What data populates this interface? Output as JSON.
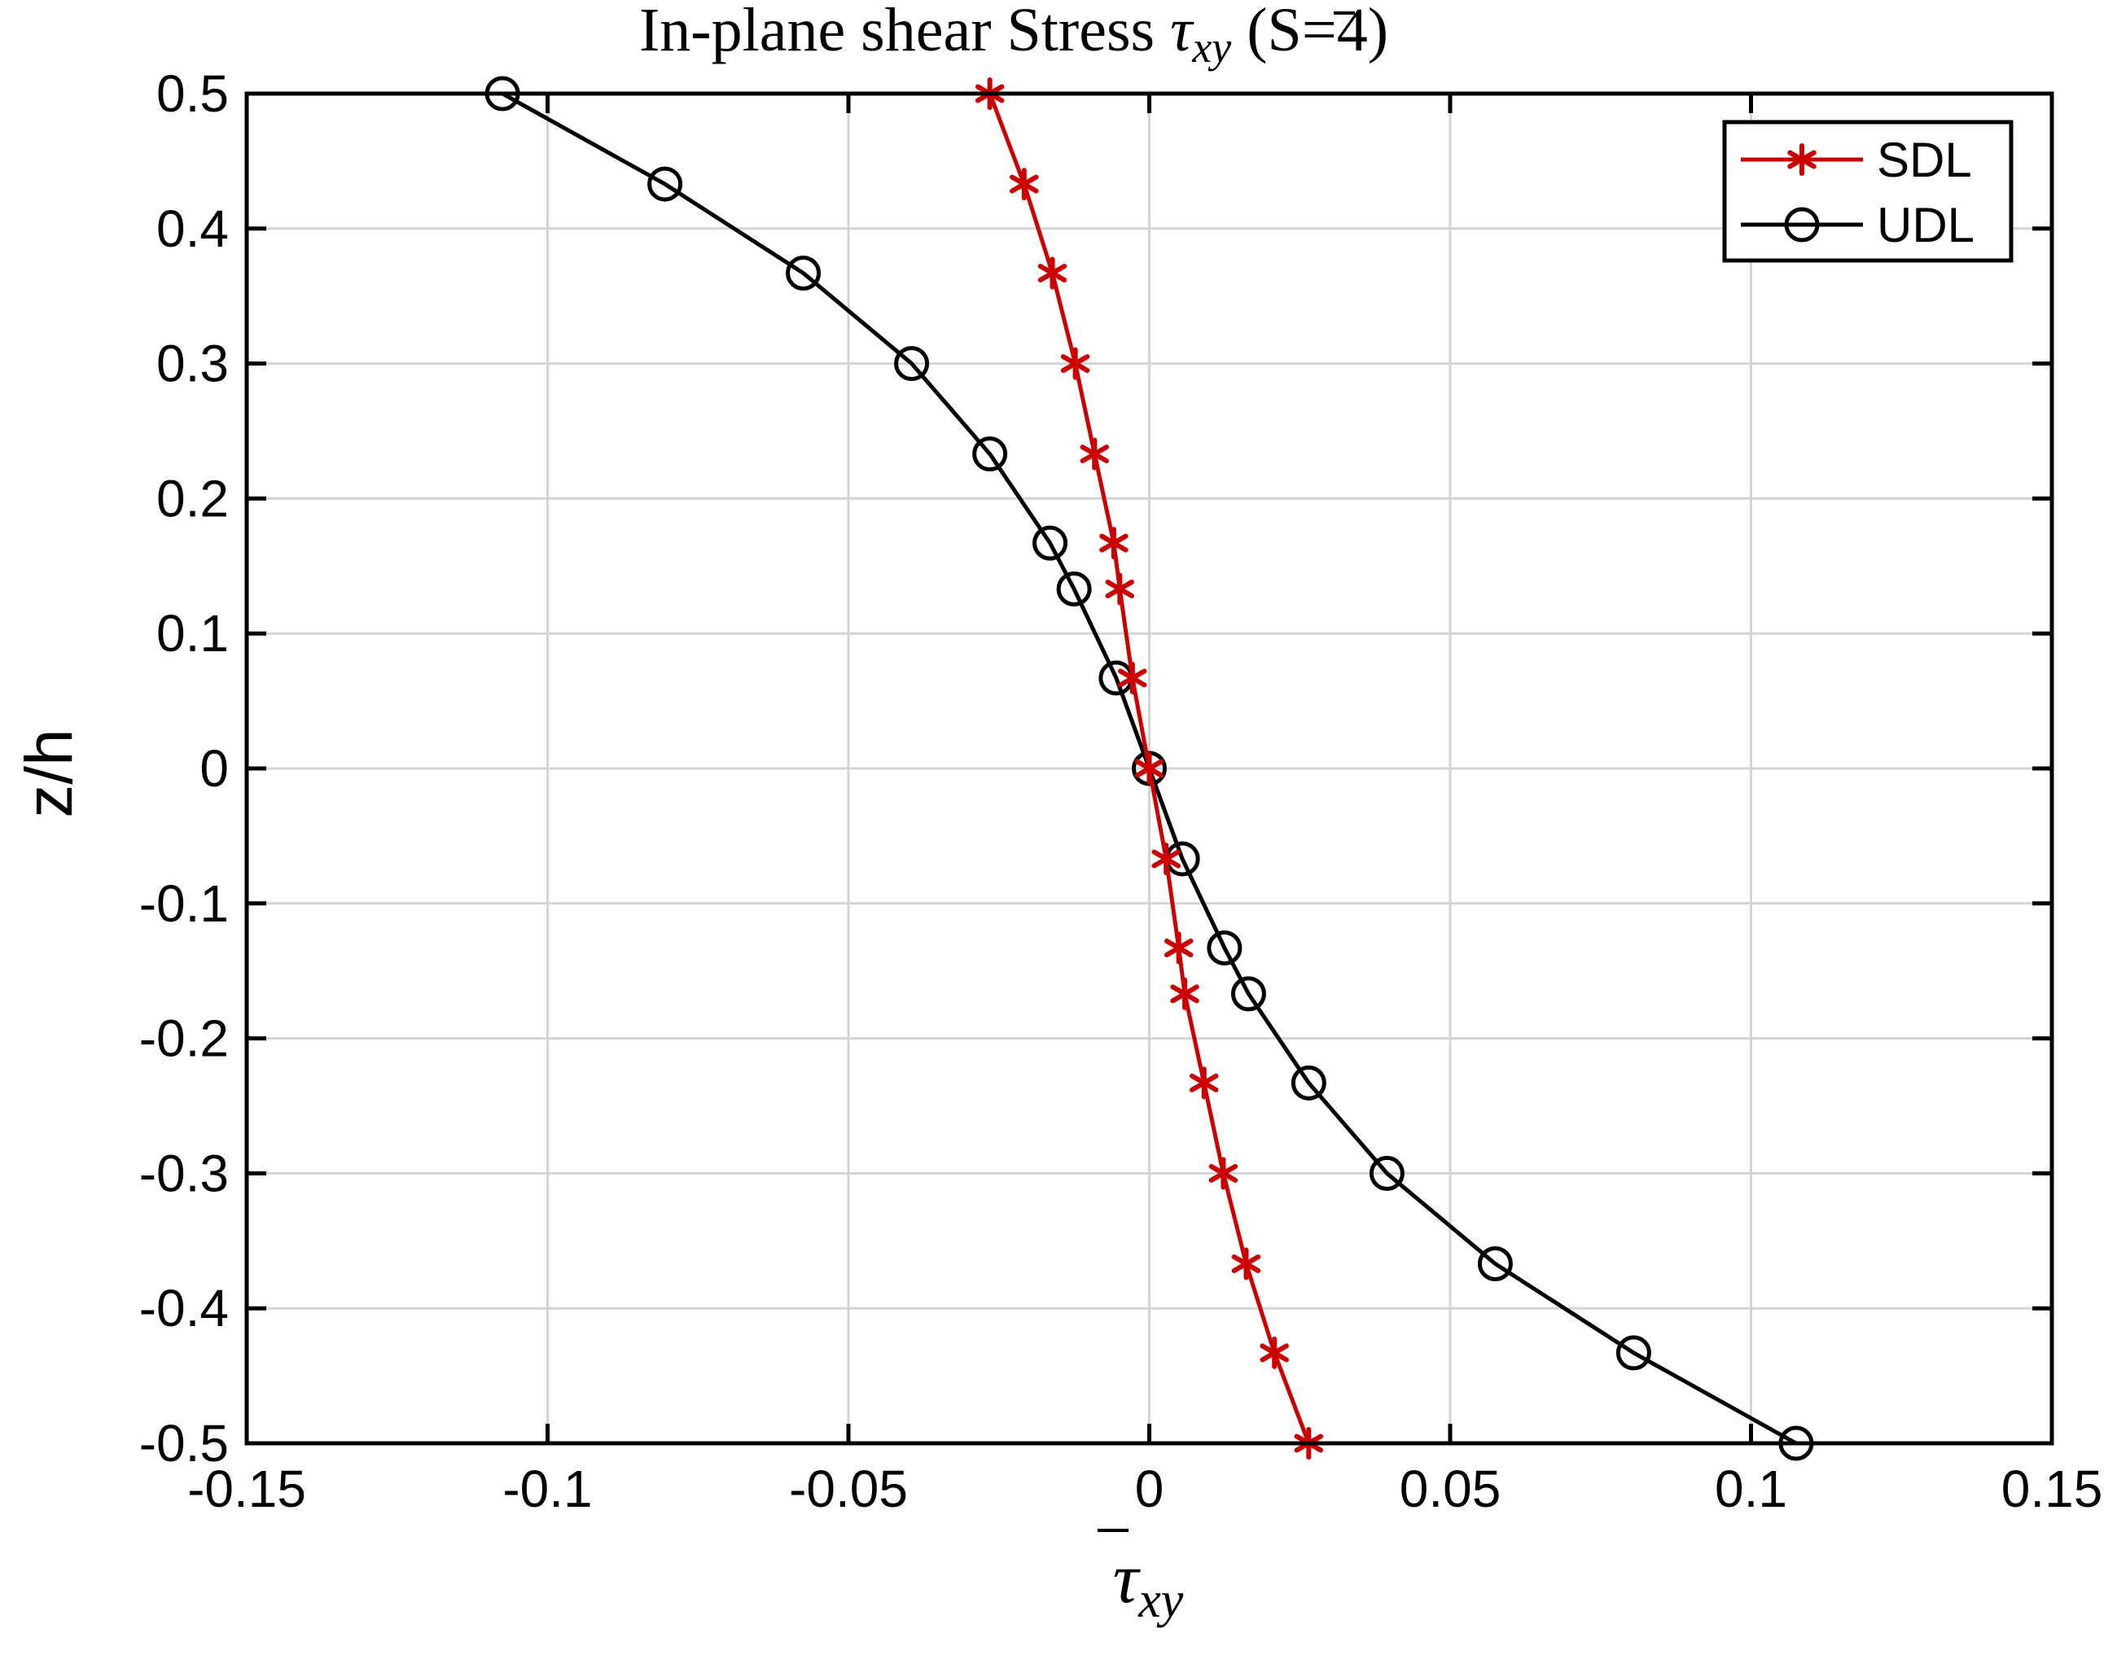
{
  "chart_data": {
    "type": "line",
    "title": {
      "prefix": "In-plane shear Stress ",
      "symbol": "τ",
      "subscript": "xy",
      "suffix": " (S=4)"
    },
    "xlabel": {
      "symbol": "τ",
      "subscript": "xy"
    },
    "ylabel": "z/h",
    "xlim": [
      -0.15,
      0.15
    ],
    "ylim": [
      -0.5,
      0.5
    ],
    "xticks": [
      -0.15,
      -0.1,
      -0.05,
      0,
      0.05,
      0.1,
      0.15
    ],
    "xtick_labels": [
      "-0.15",
      "-0.1",
      "-0.05",
      "0",
      "0.05",
      "0.1",
      "0.15"
    ],
    "yticks": [
      0.5,
      0.4,
      0.3,
      0.2,
      0.1,
      0,
      -0.1,
      -0.2,
      -0.3,
      -0.4,
      -0.5
    ],
    "ytick_labels": [
      "0.5",
      "0.4",
      "0.3",
      "0.2",
      "0.1",
      "0",
      "-0.1",
      "-0.2",
      "-0.3",
      "-0.4",
      "-0.5"
    ],
    "grid": true,
    "legend_position": "top-right",
    "series": [
      {
        "name": "SDL",
        "color": "#cc0000",
        "marker": "asterisk",
        "x": [
          -0.0265,
          -0.0208,
          -0.0161,
          -0.0123,
          -0.0091,
          -0.0059,
          -0.0049,
          -0.0028,
          0,
          0.0028,
          0.0049,
          0.0059,
          0.0091,
          0.0123,
          0.0161,
          0.0208,
          0.0265
        ],
        "y": [
          0.5,
          0.433,
          0.367,
          0.3,
          0.233,
          0.167,
          0.133,
          0.067,
          0,
          -0.067,
          -0.133,
          -0.167,
          -0.233,
          -0.3,
          -0.367,
          -0.433,
          -0.5
        ]
      },
      {
        "name": "UDL",
        "color": "#000000",
        "marker": "circle",
        "x": [
          -0.1075,
          -0.0805,
          -0.0575,
          -0.0395,
          -0.0265,
          -0.0165,
          -0.0125,
          -0.0055,
          0,
          0.0055,
          0.0125,
          0.0165,
          0.0265,
          0.0395,
          0.0575,
          0.0805,
          0.1075
        ],
        "y": [
          0.5,
          0.433,
          0.367,
          0.3,
          0.233,
          0.167,
          0.133,
          0.067,
          0,
          -0.067,
          -0.133,
          -0.167,
          -0.233,
          -0.3,
          -0.367,
          -0.433,
          -0.5
        ]
      }
    ]
  }
}
